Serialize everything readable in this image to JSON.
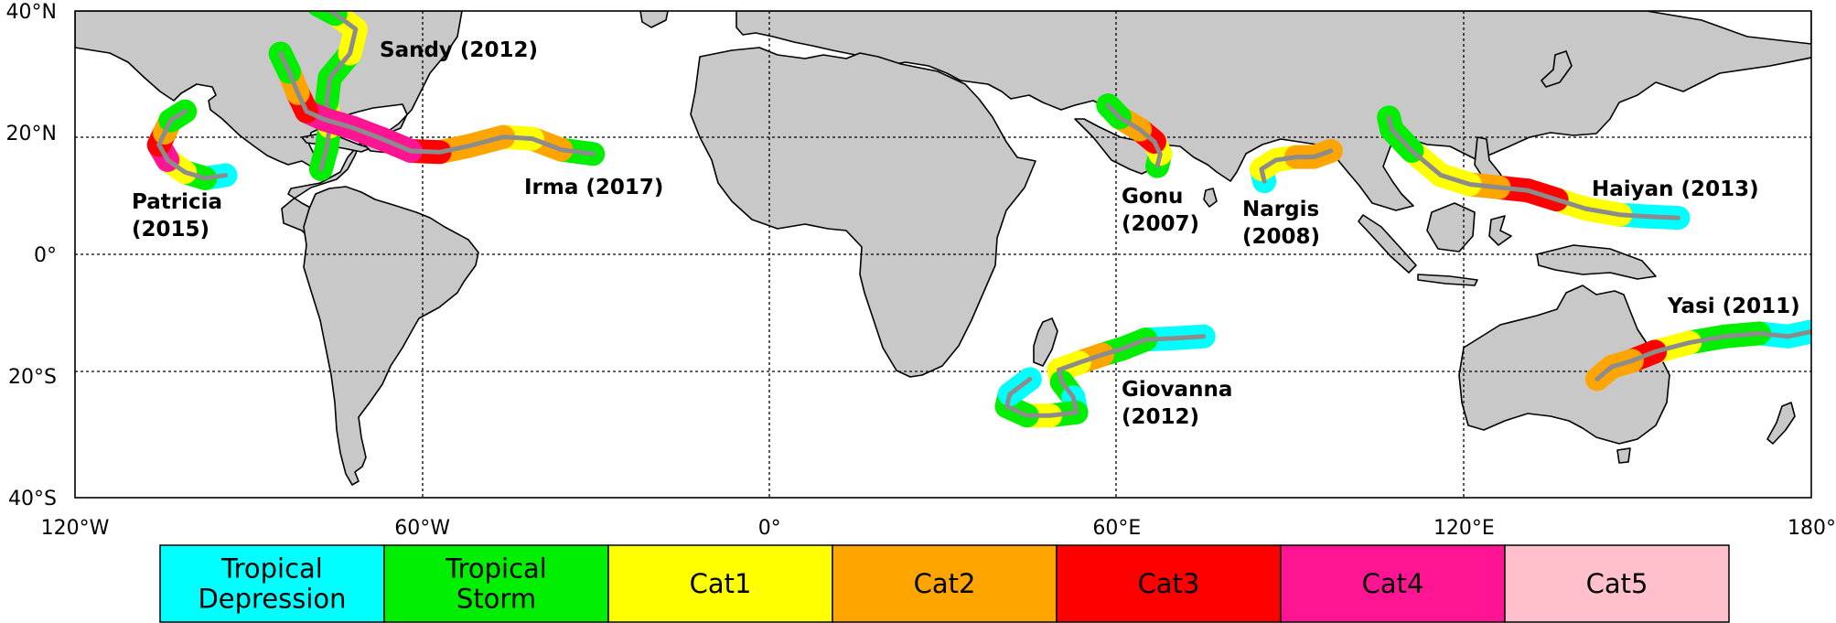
{
  "axes": {
    "lat_labels": [
      "40°N",
      "20°N",
      "0°",
      "20°S",
      "40°S"
    ],
    "lon_labels": [
      "120°W",
      "60°W",
      "0°",
      "60°E",
      "120°E",
      "180°"
    ]
  },
  "legend": [
    {
      "lines": [
        "Tropical",
        "Depression"
      ],
      "color": "#00ffff"
    },
    {
      "lines": [
        "Tropical",
        "Storm"
      ],
      "color": "#00ee00"
    },
    {
      "lines": [
        "Cat1"
      ],
      "color": "#ffff00"
    },
    {
      "lines": [
        "Cat2"
      ],
      "color": "#ffa500"
    },
    {
      "lines": [
        "Cat3"
      ],
      "color": "#ff0000"
    },
    {
      "lines": [
        "Cat4"
      ],
      "color": "#ff1493"
    },
    {
      "lines": [
        "Cat5"
      ],
      "color": "#ffc0cb"
    }
  ],
  "storms": [
    {
      "lines": [
        "Sandy (2012)"
      ],
      "track": [
        {
          "lon": -77.5,
          "lat": 14.0,
          "cat": 1
        },
        {
          "lon": -76.5,
          "lat": 17.5,
          "cat": 1
        },
        {
          "lon": -76.0,
          "lat": 21.0,
          "cat": 2
        },
        {
          "lon": -76.5,
          "lat": 25.0,
          "cat": 1
        },
        {
          "lon": -76.0,
          "lat": 29.0,
          "cat": 1
        },
        {
          "lon": -72.5,
          "lat": 33.0,
          "cat": 2
        },
        {
          "lon": -71.5,
          "lat": 37.0,
          "cat": 2
        },
        {
          "lon": -75.0,
          "lat": 39.5,
          "cat": 1
        },
        {
          "lon": -78.0,
          "lat": 41.0,
          "cat": 1
        }
      ]
    },
    {
      "lines": [
        "Irma (2017)"
      ],
      "track": [
        {
          "lon": -30.5,
          "lat": 16.5,
          "cat": 1
        },
        {
          "lon": -36.0,
          "lat": 17.2,
          "cat": 3
        },
        {
          "lon": -41.0,
          "lat": 19.0,
          "cat": 2
        },
        {
          "lon": -46.0,
          "lat": 19.3,
          "cat": 3
        },
        {
          "lon": -52.0,
          "lat": 17.8,
          "cat": 3
        },
        {
          "lon": -57.0,
          "lat": 16.8,
          "cat": 4
        },
        {
          "lon": -62.0,
          "lat": 17.0,
          "cat": 5
        },
        {
          "lon": -67.0,
          "lat": 19.0,
          "cat": 5
        },
        {
          "lon": -72.0,
          "lat": 20.8,
          "cat": 5
        },
        {
          "lon": -77.0,
          "lat": 22.2,
          "cat": 5
        },
        {
          "lon": -80.0,
          "lat": 23.5,
          "cat": 4
        },
        {
          "lon": -81.5,
          "lat": 26.5,
          "cat": 3
        },
        {
          "lon": -83.0,
          "lat": 30.0,
          "cat": 1
        },
        {
          "lon": -84.5,
          "lat": 33.0,
          "cat": 0
        }
      ]
    },
    {
      "lines": [
        "Patricia",
        "(2015)"
      ],
      "track": [
        {
          "lon": -94.0,
          "lat": 13.0,
          "cat": 0
        },
        {
          "lon": -97.5,
          "lat": 12.5,
          "cat": 1
        },
        {
          "lon": -101.0,
          "lat": 13.5,
          "cat": 2
        },
        {
          "lon": -104.0,
          "lat": 15.5,
          "cat": 5
        },
        {
          "lon": -105.5,
          "lat": 18.0,
          "cat": 4
        },
        {
          "lon": -104.5,
          "lat": 20.0,
          "cat": 3
        },
        {
          "lon": -103.5,
          "lat": 22.0,
          "cat": 1
        },
        {
          "lon": -101.0,
          "lat": 23.5,
          "cat": 0
        }
      ]
    },
    {
      "lines": [
        "Gonu",
        "(2007)"
      ],
      "track": [
        {
          "lon": 67.0,
          "lat": 14.5,
          "cat": 1
        },
        {
          "lon": 67.5,
          "lat": 16.5,
          "cat": 2
        },
        {
          "lon": 66.5,
          "lat": 18.5,
          "cat": 4
        },
        {
          "lon": 64.0,
          "lat": 20.5,
          "cat": 3
        },
        {
          "lon": 60.5,
          "lat": 22.5,
          "cat": 1
        },
        {
          "lon": 58.5,
          "lat": 24.5,
          "cat": 0
        }
      ]
    },
    {
      "lines": [
        "Nargis",
        "(2008)"
      ],
      "track": [
        {
          "lon": 85.5,
          "lat": 12.0,
          "cat": 0
        },
        {
          "lon": 85.0,
          "lat": 14.0,
          "cat": 2
        },
        {
          "lon": 87.5,
          "lat": 15.5,
          "cat": 2
        },
        {
          "lon": 91.0,
          "lat": 16.0,
          "cat": 3
        },
        {
          "lon": 94.0,
          "lat": 16.0,
          "cat": 3
        },
        {
          "lon": 97.0,
          "lat": 17.0,
          "cat": 1
        }
      ]
    },
    {
      "lines": [
        "Haiyan (2013)"
      ],
      "track": [
        {
          "lon": 157.0,
          "lat": 6.0,
          "cat": 0
        },
        {
          "lon": 152.0,
          "lat": 6.2,
          "cat": 0
        },
        {
          "lon": 147.0,
          "lat": 6.5,
          "cat": 2
        },
        {
          "lon": 141.0,
          "lat": 7.5,
          "cat": 2
        },
        {
          "lon": 136.0,
          "lat": 9.0,
          "cat": 4
        },
        {
          "lon": 131.0,
          "lat": 10.5,
          "cat": 4
        },
        {
          "lon": 126.0,
          "lat": 11.0,
          "cat": 3
        },
        {
          "lon": 121.0,
          "lat": 11.5,
          "cat": 2
        },
        {
          "lon": 116.0,
          "lat": 13.0,
          "cat": 2
        },
        {
          "lon": 111.0,
          "lat": 17.0,
          "cat": 1
        },
        {
          "lon": 107.5,
          "lat": 20.5,
          "cat": 1
        },
        {
          "lon": 107.0,
          "lat": 22.5,
          "cat": 0
        }
      ]
    },
    {
      "lines": [
        "Yasi (2011)"
      ],
      "track": [
        {
          "lon": 181.0,
          "lat": -12.5,
          "cat": 0
        },
        {
          "lon": 176.0,
          "lat": -13.5,
          "cat": 0
        },
        {
          "lon": 171.0,
          "lat": -13.0,
          "cat": 1
        },
        {
          "lon": 165.0,
          "lat": -13.5,
          "cat": 1
        },
        {
          "lon": 159.0,
          "lat": -14.5,
          "cat": 2
        },
        {
          "lon": 153.0,
          "lat": -16.0,
          "cat": 4
        },
        {
          "lon": 149.0,
          "lat": -17.5,
          "cat": 3
        },
        {
          "lon": 145.5,
          "lat": -18.5,
          "cat": 3
        },
        {
          "lon": 143.0,
          "lat": -20.5,
          "cat": 2
        }
      ]
    },
    {
      "lines": [
        "Giovanna",
        "(2012)"
      ],
      "track": [
        {
          "lon": 75.0,
          "lat": -13.5,
          "cat": 0
        },
        {
          "lon": 70.0,
          "lat": -13.8,
          "cat": 0
        },
        {
          "lon": 65.0,
          "lat": -14.0,
          "cat": 1
        },
        {
          "lon": 61.0,
          "lat": -15.5,
          "cat": 1
        },
        {
          "lon": 57.5,
          "lat": -16.5,
          "cat": 3
        },
        {
          "lon": 53.5,
          "lat": -17.8,
          "cat": 2
        },
        {
          "lon": 50.0,
          "lat": -19.0,
          "cat": 2
        },
        {
          "lon": 50.5,
          "lat": -21.0,
          "cat": 1
        },
        {
          "lon": 52.5,
          "lat": -23.5,
          "cat": 0
        },
        {
          "lon": 53.0,
          "lat": -26.0,
          "cat": 1
        },
        {
          "lon": 48.5,
          "lat": -26.5,
          "cat": 2
        },
        {
          "lon": 44.5,
          "lat": -26.5,
          "cat": 1
        },
        {
          "lon": 41.0,
          "lat": -25.0,
          "cat": 1
        },
        {
          "lon": 41.5,
          "lat": -23.0,
          "cat": 0
        },
        {
          "lon": 45.0,
          "lat": -20.5,
          "cat": 1
        }
      ]
    }
  ]
}
